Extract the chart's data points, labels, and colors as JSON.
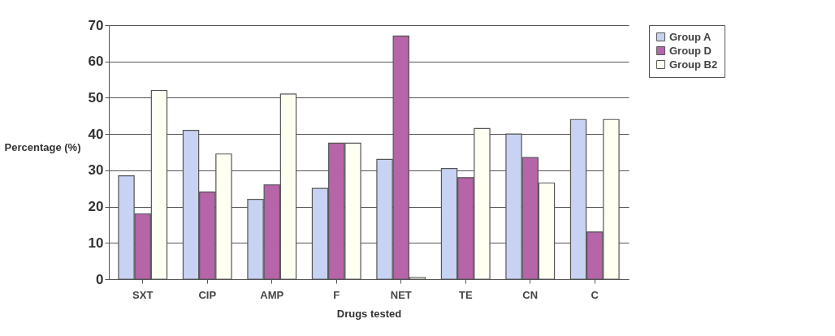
{
  "chart_data": {
    "type": "bar",
    "xlabel": "Drugs tested",
    "ylabel": "Percentage (%)",
    "categories": [
      "SXT",
      "CIP",
      "AMP",
      "F",
      "NET",
      "TE",
      "CN",
      "C"
    ],
    "series": [
      {
        "name": "Group A",
        "color": "#c8d2f2",
        "values": [
          28.5,
          41,
          22,
          25,
          33,
          30.5,
          40,
          44
        ]
      },
      {
        "name": "Group D",
        "color": "#b565a8",
        "values": [
          18,
          24,
          26,
          37.5,
          67,
          28,
          33.5,
          13
        ]
      },
      {
        "name": "Group B2",
        "color": "#fffff2",
        "values": [
          52,
          34.5,
          51,
          37.5,
          0.5,
          41.5,
          26.5,
          44
        ]
      }
    ],
    "ylim": [
      0,
      70
    ],
    "yticks": [
      0,
      10,
      20,
      30,
      40,
      50,
      60,
      70
    ],
    "grid": "y",
    "legend": "right"
  }
}
